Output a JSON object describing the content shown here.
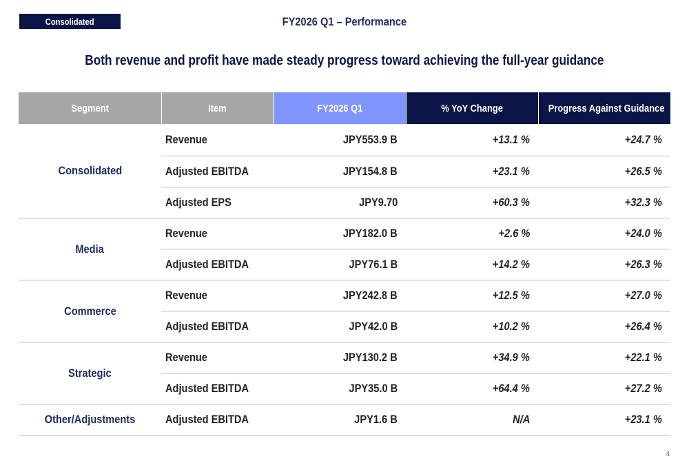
{
  "header": {
    "tag": "Consolidated",
    "title": "FY2026 Q1 – Performance"
  },
  "subtitle": "Both revenue and profit have made steady progress toward achieving the full-year guidance",
  "table": {
    "columns": [
      "Segment",
      "Item",
      "FY2026 Q1",
      "% YoY Change",
      "Progress Against Guidance"
    ],
    "groups": [
      {
        "segment": "Consolidated",
        "rows": [
          {
            "item": "Revenue",
            "value": "JPY553.9 B",
            "yoy": "+13.1 %",
            "progress": "+24.7 %"
          },
          {
            "item": "Adjusted EBITDA",
            "value": "JPY154.8 B",
            "yoy": "+23.1 %",
            "progress": "+26.5 %"
          },
          {
            "item": "Adjusted EPS",
            "value": "JPY9.70",
            "yoy": "+60.3 %",
            "progress": "+32.3 %"
          }
        ]
      },
      {
        "segment": "Media",
        "rows": [
          {
            "item": "Revenue",
            "value": "JPY182.0 B",
            "yoy": "+2.6 %",
            "progress": "+24.0 %"
          },
          {
            "item": "Adjusted EBITDA",
            "value": "JPY76.1 B",
            "yoy": "+14.2 %",
            "progress": "+26.3 %"
          }
        ]
      },
      {
        "segment": "Commerce",
        "rows": [
          {
            "item": "Revenue",
            "value": "JPY242.8 B",
            "yoy": "+12.5 %",
            "progress": "+27.0 %"
          },
          {
            "item": "Adjusted EBITDA",
            "value": "JPY42.0 B",
            "yoy": "+10.2 %",
            "progress": "+26.4 %"
          }
        ]
      },
      {
        "segment": "Strategic",
        "rows": [
          {
            "item": "Revenue",
            "value": "JPY130.2 B",
            "yoy": "+34.9 %",
            "progress": "+22.1 %"
          },
          {
            "item": "Adjusted EBITDA",
            "value": "JPY35.0 B",
            "yoy": "+64.4 %",
            "progress": "+27.2 %"
          }
        ]
      },
      {
        "segment": "Other/Adjustments",
        "rows": [
          {
            "item": "Adjusted EBITDA",
            "value": "JPY1.6 B",
            "yoy": "N/A",
            "progress": "+23.1 %"
          }
        ]
      }
    ]
  },
  "page_number": "4",
  "colors": {
    "navy": "#0b1446",
    "header_gray": "#a6a6a6",
    "header_blue": "#7f95ff",
    "text_dark": "#1f2a5a"
  }
}
